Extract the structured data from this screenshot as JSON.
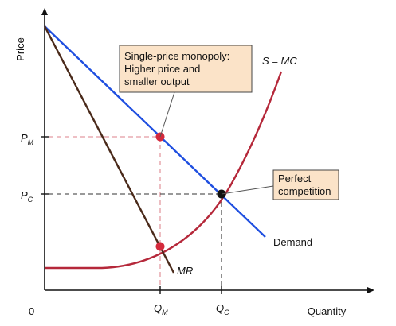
{
  "axes": {
    "y_label": "Price",
    "x_label": "Quantity",
    "origin_label": "0"
  },
  "price_levels": {
    "pm": {
      "main": "P",
      "sub": "M",
      "color": "#c0283a"
    },
    "pc": {
      "main": "P",
      "sub": "C",
      "color": "#111111"
    }
  },
  "quantity_levels": {
    "qm": {
      "main": "Q",
      "sub": "M",
      "color": "#c0283a"
    },
    "qc": {
      "main": "Q",
      "sub": "C",
      "color": "#111111"
    }
  },
  "curves": {
    "demand": {
      "label": "Demand",
      "color": "#1f4fe0"
    },
    "mr": {
      "label": "MR",
      "color": "#4a2a1a"
    },
    "supply": {
      "label": "S = MC",
      "color": "#b5283a"
    }
  },
  "annotations": {
    "monopoly": {
      "lines": [
        "Single-price monopoly:",
        "Higher price and",
        "smaller output"
      ]
    },
    "competition": {
      "lines": [
        "Perfect",
        "competition"
      ]
    }
  },
  "points": {
    "monopoly_point_color": "#d42a3c",
    "mr_point_color": "#d42a3c",
    "competition_point_color": "#111111"
  }
}
